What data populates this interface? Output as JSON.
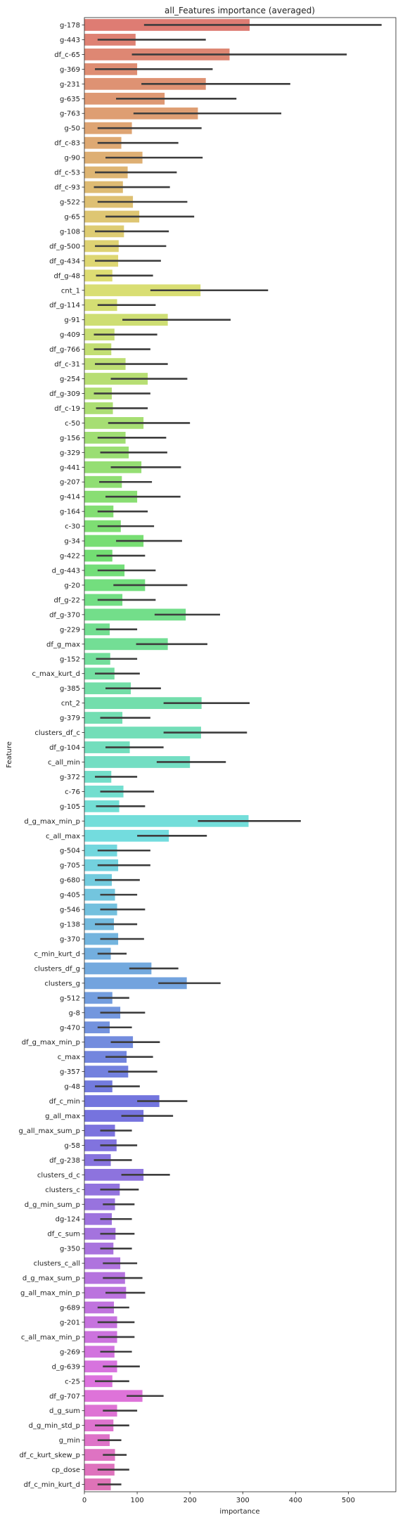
{
  "chart_data": {
    "type": "bar",
    "orientation": "horizontal",
    "title": "all_Features importance (averaged)",
    "xlabel": "importance",
    "ylabel": "Feature",
    "xlim": [
      0,
      590
    ],
    "xticks": [
      0,
      100,
      200,
      300,
      400,
      500
    ],
    "grid": false,
    "legend": false,
    "error_bar_color": "#3d3d3d",
    "categories": [
      "g-178",
      "g-443",
      "df_c-65",
      "g-369",
      "g-231",
      "g-635",
      "g-763",
      "g-50",
      "df_c-83",
      "g-90",
      "df_c-53",
      "df_c-93",
      "g-522",
      "g-65",
      "g-108",
      "df_g-500",
      "df_g-434",
      "df_g-48",
      "cnt_1",
      "df_g-114",
      "g-91",
      "g-409",
      "df_g-766",
      "df_c-31",
      "g-254",
      "df_g-309",
      "df_c-19",
      "c-50",
      "g-156",
      "g-329",
      "g-441",
      "g-207",
      "g-414",
      "g-164",
      "c-30",
      "g-34",
      "g-422",
      "d_g-443",
      "g-20",
      "df_g-22",
      "df_g-370",
      "g-229",
      "df_g_max",
      "g-152",
      "c_max_kurt_d",
      "g-385",
      "cnt_2",
      "g-379",
      "clusters_df_c",
      "df_g-104",
      "c_all_min",
      "g-372",
      "c-76",
      "g-105",
      "d_g_max_min_p",
      "c_all_max",
      "g-504",
      "g-705",
      "g-680",
      "g-405",
      "g-546",
      "g-138",
      "g-370",
      "c_min_kurt_d",
      "clusters_df_g",
      "clusters_g",
      "g-512",
      "g-8",
      "g-470",
      "df_g_max_min_p",
      "c_max",
      "g-357",
      "g-48",
      "df_c_min",
      "g_all_max",
      "g_all_max_sum_p",
      "g-58",
      "df_g-238",
      "clusters_d_c",
      "clusters_c",
      "d_g_min_sum_p",
      "dg-124",
      "df_c_sum",
      "g-350",
      "clusters_c_all",
      "d_g_max_sum_p",
      "g_all_max_min_p",
      "g-689",
      "g-201",
      "c_all_max_min_p",
      "g-269",
      "d_g-639",
      "c-25",
      "df_g-707",
      "d_g_sum",
      "d_g_min_std_p",
      "g_min",
      "df_c_kurt_skew_p",
      "cp_dose",
      "df_c_min_kurt_d"
    ],
    "values": [
      313,
      97,
      275,
      100,
      230,
      152,
      215,
      90,
      70,
      110,
      82,
      73,
      92,
      104,
      75,
      65,
      64,
      53,
      220,
      62,
      158,
      57,
      51,
      78,
      120,
      52,
      54,
      112,
      78,
      84,
      108,
      71,
      100,
      55,
      69,
      112,
      53,
      76,
      115,
      72,
      192,
      48,
      158,
      49,
      57,
      88,
      222,
      72,
      221,
      86,
      200,
      51,
      74,
      66,
      311,
      160,
      62,
      64,
      52,
      58,
      62,
      56,
      64,
      50,
      127,
      194,
      53,
      68,
      48,
      92,
      80,
      83,
      53,
      142,
      112,
      58,
      61,
      50,
      112,
      67,
      58,
      52,
      59,
      55,
      68,
      77,
      79,
      56,
      62,
      62,
      57,
      62,
      53,
      110,
      62,
      55,
      48,
      58,
      57,
      50
    ],
    "errors": [
      [
        113,
        563
      ],
      [
        25,
        230
      ],
      [
        90,
        497
      ],
      [
        20,
        243
      ],
      [
        108,
        390
      ],
      [
        60,
        288
      ],
      [
        93,
        373
      ],
      [
        25,
        222
      ],
      [
        25,
        178
      ],
      [
        40,
        224
      ],
      [
        20,
        175
      ],
      [
        18,
        162
      ],
      [
        25,
        195
      ],
      [
        40,
        208
      ],
      [
        20,
        160
      ],
      [
        20,
        155
      ],
      [
        20,
        145
      ],
      [
        22,
        130
      ],
      [
        125,
        348
      ],
      [
        25,
        135
      ],
      [
        72,
        277
      ],
      [
        18,
        138
      ],
      [
        18,
        125
      ],
      [
        20,
        158
      ],
      [
        50,
        195
      ],
      [
        18,
        125
      ],
      [
        22,
        120
      ],
      [
        45,
        200
      ],
      [
        25,
        155
      ],
      [
        30,
        157
      ],
      [
        50,
        183
      ],
      [
        28,
        128
      ],
      [
        40,
        182
      ],
      [
        25,
        120
      ],
      [
        25,
        132
      ],
      [
        60,
        185
      ],
      [
        23,
        115
      ],
      [
        25,
        135
      ],
      [
        55,
        195
      ],
      [
        25,
        135
      ],
      [
        133,
        257
      ],
      [
        22,
        100
      ],
      [
        98,
        233
      ],
      [
        22,
        100
      ],
      [
        20,
        105
      ],
      [
        40,
        145
      ],
      [
        150,
        313
      ],
      [
        30,
        125
      ],
      [
        150,
        308
      ],
      [
        40,
        150
      ],
      [
        137,
        268
      ],
      [
        20,
        100
      ],
      [
        30,
        132
      ],
      [
        22,
        115
      ],
      [
        215,
        410
      ],
      [
        100,
        232
      ],
      [
        25,
        125
      ],
      [
        25,
        125
      ],
      [
        20,
        105
      ],
      [
        30,
        100
      ],
      [
        30,
        115
      ],
      [
        20,
        100
      ],
      [
        30,
        113
      ],
      [
        25,
        80
      ],
      [
        85,
        178
      ],
      [
        140,
        258
      ],
      [
        25,
        85
      ],
      [
        30,
        115
      ],
      [
        25,
        90
      ],
      [
        50,
        143
      ],
      [
        40,
        130
      ],
      [
        45,
        138
      ],
      [
        20,
        105
      ],
      [
        100,
        195
      ],
      [
        70,
        168
      ],
      [
        30,
        90
      ],
      [
        30,
        100
      ],
      [
        18,
        90
      ],
      [
        70,
        162
      ],
      [
        30,
        103
      ],
      [
        35,
        95
      ],
      [
        30,
        90
      ],
      [
        30,
        95
      ],
      [
        30,
        90
      ],
      [
        35,
        100
      ],
      [
        35,
        110
      ],
      [
        40,
        115
      ],
      [
        25,
        85
      ],
      [
        25,
        95
      ],
      [
        25,
        95
      ],
      [
        30,
        90
      ],
      [
        35,
        105
      ],
      [
        20,
        85
      ],
      [
        80,
        150
      ],
      [
        35,
        100
      ],
      [
        20,
        85
      ],
      [
        25,
        70
      ],
      [
        35,
        80
      ],
      [
        25,
        85
      ],
      [
        25,
        70
      ]
    ]
  }
}
